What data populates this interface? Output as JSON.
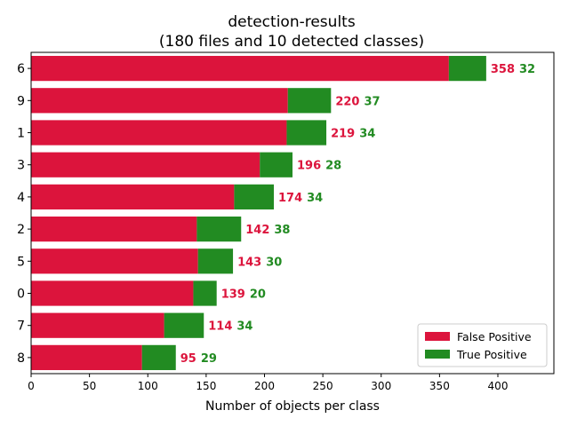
{
  "chart_data": {
    "type": "bar",
    "orientation": "horizontal",
    "stacked": true,
    "title": "detection-results",
    "subtitle": "(180 files and 10 detected classes)",
    "xlabel": "Number of objects per class",
    "ylabel": "",
    "xlim": [
      0,
      448
    ],
    "xticks": [
      "0",
      "50",
      "100",
      "150",
      "200",
      "250",
      "300",
      "350",
      "400"
    ],
    "categories": [
      "6",
      "9",
      "1",
      "3",
      "4",
      "2",
      "5",
      "0",
      "7",
      "8"
    ],
    "series": [
      {
        "name": "False Positive",
        "color": "#dc143c",
        "values": [
          358,
          220,
          219,
          196,
          174,
          142,
          143,
          139,
          114,
          95
        ]
      },
      {
        "name": "True Positive",
        "color": "#228b22",
        "values": [
          32,
          37,
          34,
          28,
          34,
          38,
          30,
          20,
          34,
          29
        ]
      }
    ],
    "grid": false,
    "legend": {
      "position": "lower-right",
      "entries": [
        "False Positive",
        "True Positive"
      ]
    }
  }
}
